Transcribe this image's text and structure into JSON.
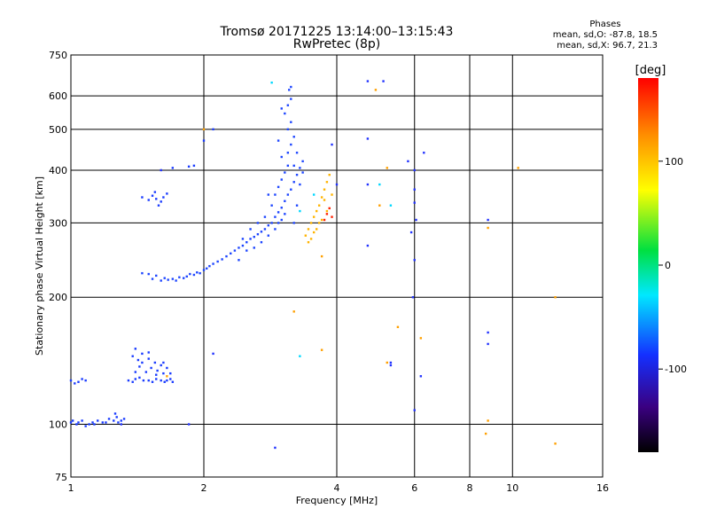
{
  "header": {
    "title_line1": "Tromsø 20171225 13:14:00–13:15:43",
    "title_line2": "RwPretec (8p)",
    "phases_heading": "Phases",
    "phases_o": "mean, sd,O: -87.8, 18.5",
    "phases_x": "mean, sd,X: 96.7, 21.3"
  },
  "chart_data": {
    "type": "scatter",
    "title": "Tromsø 20171225 13:14:00–13:15:43",
    "subtitle": "RwPretec (8p)",
    "xlabel": "Frequency [MHz]",
    "ylabel": "Stationary phase Virtual Height [km]",
    "xscale": "log",
    "yscale": "log",
    "xlim": [
      1,
      16
    ],
    "ylim": [
      75,
      750
    ],
    "xticks": [
      1,
      2,
      4,
      6,
      8,
      10,
      16
    ],
    "xtick_labels": [
      "1",
      "2",
      "4",
      "6",
      "8",
      "10",
      "16"
    ],
    "yticks": [
      75,
      100,
      200,
      300,
      400,
      500,
      600,
      750
    ],
    "ytick_labels": [
      "75",
      "100",
      "200",
      "300",
      "400",
      "500",
      "600",
      "750"
    ],
    "grid": true,
    "colorbar": {
      "label": "[deg]",
      "range": [
        -180,
        180
      ],
      "ticks": [
        100,
        0,
        -100
      ],
      "tick_labels": [
        "100",
        "0",
        "-100"
      ],
      "colors": [
        "#000000",
        "#3a0080",
        "#1430ff",
        "#00e8ff",
        "#00e040",
        "#ffff00",
        "#ff8c00",
        "#ff0000"
      ]
    },
    "clusters": [
      {
        "name": "low E trace",
        "phase": -110,
        "color": "#1a3cff",
        "points": [
          [
            1.0,
            101
          ],
          [
            1.01,
            102
          ],
          [
            1.03,
            100
          ],
          [
            1.04,
            101
          ],
          [
            1.06,
            102
          ],
          [
            1.08,
            99
          ],
          [
            1.1,
            100
          ],
          [
            1.12,
            101
          ],
          [
            1.13,
            100
          ],
          [
            1.15,
            102
          ],
          [
            1.18,
            101
          ],
          [
            1.2,
            101
          ],
          [
            1.22,
            103
          ],
          [
            1.25,
            102
          ],
          [
            1.27,
            104
          ],
          [
            1.28,
            101
          ],
          [
            1.3,
            102
          ],
          [
            1.32,
            103
          ],
          [
            1.26,
            106
          ]
        ]
      },
      {
        "name": "E trace 2",
        "phase": -115,
        "color": "#1a3cff",
        "points": [
          [
            1.0,
            127
          ],
          [
            1.02,
            125
          ],
          [
            1.04,
            126
          ],
          [
            1.06,
            128
          ],
          [
            1.08,
            127
          ],
          [
            1.35,
            127
          ],
          [
            1.38,
            126
          ],
          [
            1.4,
            128
          ],
          [
            1.43,
            129
          ],
          [
            1.46,
            127
          ],
          [
            1.5,
            127
          ],
          [
            1.53,
            126
          ],
          [
            1.56,
            128
          ],
          [
            1.6,
            127
          ],
          [
            1.63,
            126
          ],
          [
            1.65,
            127
          ],
          [
            1.68,
            128
          ],
          [
            1.7,
            126
          ]
        ]
      },
      {
        "name": "E trace 2 upper",
        "phase": -110,
        "color": "#1a3cff",
        "points": [
          [
            1.38,
            145
          ],
          [
            1.4,
            151
          ],
          [
            1.42,
            142
          ],
          [
            1.45,
            140
          ],
          [
            1.48,
            133
          ],
          [
            1.5,
            148
          ],
          [
            1.52,
            136
          ],
          [
            1.55,
            140
          ],
          [
            1.57,
            134
          ],
          [
            1.6,
            138
          ],
          [
            1.62,
            132
          ],
          [
            1.65,
            136
          ],
          [
            1.68,
            132
          ],
          [
            1.4,
            133
          ],
          [
            1.43,
            137
          ],
          [
            1.56,
            131
          ],
          [
            1.62,
            140
          ],
          [
            1.45,
            147
          ],
          [
            1.5,
            143
          ]
        ]
      },
      {
        "name": "F region trace",
        "phase": -105,
        "color": "#1e46ff",
        "points": [
          [
            1.45,
            228
          ],
          [
            1.5,
            227
          ],
          [
            1.53,
            221
          ],
          [
            1.56,
            225
          ],
          [
            1.6,
            219
          ],
          [
            1.63,
            222
          ],
          [
            1.66,
            220
          ],
          [
            1.7,
            221
          ],
          [
            1.73,
            219
          ],
          [
            1.76,
            223
          ],
          [
            1.8,
            222
          ],
          [
            1.83,
            224
          ],
          [
            1.86,
            227
          ],
          [
            1.9,
            226
          ],
          [
            1.93,
            229
          ],
          [
            1.96,
            228
          ],
          [
            2.0,
            232
          ],
          [
            2.03,
            234
          ],
          [
            2.06,
            237
          ],
          [
            2.1,
            240
          ],
          [
            2.15,
            243
          ],
          [
            2.2,
            246
          ],
          [
            2.25,
            250
          ],
          [
            2.3,
            254
          ],
          [
            2.35,
            258
          ],
          [
            2.4,
            262
          ],
          [
            2.45,
            265
          ],
          [
            2.5,
            270
          ],
          [
            2.55,
            275
          ],
          [
            2.6,
            278
          ],
          [
            2.65,
            282
          ],
          [
            2.7,
            286
          ],
          [
            2.75,
            290
          ],
          [
            2.8,
            296
          ],
          [
            2.85,
            300
          ],
          [
            2.9,
            310
          ],
          [
            2.95,
            318
          ],
          [
            3.0,
            326
          ],
          [
            3.05,
            338
          ],
          [
            3.1,
            350
          ],
          [
            3.15,
            360
          ],
          [
            3.2,
            375
          ],
          [
            3.25,
            390
          ],
          [
            3.3,
            405
          ],
          [
            3.35,
            420
          ]
        ]
      },
      {
        "name": "F region spread",
        "phase": -100,
        "color": "#1e46ff",
        "points": [
          [
            2.4,
            245
          ],
          [
            2.5,
            258
          ],
          [
            2.6,
            262
          ],
          [
            2.7,
            270
          ],
          [
            2.8,
            280
          ],
          [
            2.9,
            290
          ],
          [
            2.95,
            300
          ],
          [
            3.0,
            305
          ],
          [
            3.05,
            315
          ],
          [
            2.75,
            310
          ],
          [
            2.85,
            330
          ],
          [
            2.9,
            350
          ],
          [
            2.95,
            365
          ],
          [
            3.0,
            380
          ],
          [
            3.05,
            395
          ],
          [
            3.1,
            410
          ],
          [
            3.1,
            440
          ],
          [
            3.15,
            460
          ],
          [
            3.2,
            480
          ],
          [
            3.1,
            500
          ],
          [
            3.15,
            520
          ],
          [
            3.05,
            545
          ],
          [
            3.1,
            570
          ],
          [
            3.15,
            590
          ],
          [
            3.12,
            620
          ],
          [
            3.15,
            630
          ],
          [
            2.95,
            470
          ],
          [
            3.0,
            430
          ],
          [
            2.8,
            350
          ],
          [
            2.65,
            300
          ],
          [
            2.55,
            290
          ],
          [
            2.45,
            275
          ],
          [
            3.2,
            300
          ],
          [
            3.25,
            330
          ],
          [
            3.3,
            370
          ],
          [
            3.35,
            395
          ],
          [
            3.0,
            560
          ],
          [
            3.25,
            440
          ],
          [
            3.2,
            410
          ]
        ]
      },
      {
        "name": "F layer x-mode",
        "phase": 100,
        "color": "#ffb400",
        "points": [
          [
            3.4,
            280
          ],
          [
            3.45,
            290
          ],
          [
            3.5,
            300
          ],
          [
            3.55,
            310
          ],
          [
            3.6,
            320
          ],
          [
            3.65,
            330
          ],
          [
            3.7,
            345
          ],
          [
            3.75,
            360
          ],
          [
            3.8,
            375
          ],
          [
            3.85,
            390
          ],
          [
            3.5,
            275
          ],
          [
            3.6,
            290
          ],
          [
            3.7,
            305
          ],
          [
            3.8,
            320
          ],
          [
            3.65,
            300
          ],
          [
            3.75,
            340
          ],
          [
            3.55,
            285
          ],
          [
            3.9,
            350
          ],
          [
            3.45,
            270
          ]
        ]
      },
      {
        "name": "Es patch",
        "phase": -110,
        "color": "#1a3cff",
        "points": [
          [
            1.45,
            345
          ],
          [
            1.5,
            340
          ],
          [
            1.53,
            348
          ],
          [
            1.56,
            342
          ],
          [
            1.6,
            337
          ],
          [
            1.58,
            330
          ],
          [
            1.62,
            345
          ],
          [
            1.55,
            355
          ],
          [
            1.65,
            352
          ],
          [
            1.7,
            405
          ],
          [
            1.85,
            408
          ],
          [
            1.9,
            410
          ],
          [
            2.0,
            470
          ],
          [
            2.1,
            500
          ]
        ]
      },
      {
        "name": "x-mode red",
        "phase": 170,
        "color": "#ff2000",
        "points": [
          [
            3.8,
            315
          ],
          [
            3.85,
            325
          ],
          [
            3.9,
            310
          ],
          [
            3.75,
            305
          ]
        ]
      },
      {
        "name": "sporadic",
        "phase": -100,
        "color": "#2233ff",
        "points": [
          [
            4.7,
            650
          ],
          [
            4.7,
            475
          ],
          [
            5.8,
            420
          ],
          [
            6.0,
            400
          ],
          [
            6.0,
            360
          ],
          [
            6.0,
            335
          ],
          [
            6.05,
            305
          ],
          [
            5.9,
            285
          ],
          [
            6.0,
            245
          ],
          [
            5.95,
            200
          ],
          [
            6.0,
            108
          ],
          [
            4.7,
            265
          ],
          [
            5.3,
            138
          ],
          [
            5.3,
            140
          ],
          [
            4.7,
            370
          ],
          [
            5.1,
            650
          ],
          [
            6.3,
            440
          ],
          [
            8.8,
            305
          ],
          [
            8.8,
            165
          ],
          [
            8.8,
            155
          ],
          [
            6.2,
            130
          ],
          [
            4.0,
            370
          ],
          [
            3.9,
            460
          ],
          [
            2.9,
            88
          ],
          [
            2.1,
            147
          ],
          [
            1.85,
            100
          ],
          [
            1.3,
            100
          ],
          [
            1.6,
            400
          ]
        ]
      },
      {
        "name": "sporadic warm",
        "phase": 120,
        "color": "#ffa000",
        "points": [
          [
            4.9,
            620
          ],
          [
            5.2,
            140
          ],
          [
            5.5,
            170
          ],
          [
            6.2,
            160
          ],
          [
            8.7,
            95
          ],
          [
            8.8,
            102
          ],
          [
            12.5,
            90
          ],
          [
            12.5,
            200
          ],
          [
            10.3,
            405
          ],
          [
            8.8,
            292
          ],
          [
            5.0,
            330
          ],
          [
            5.2,
            405
          ],
          [
            3.7,
            150
          ],
          [
            3.2,
            185
          ],
          [
            2.0,
            500
          ],
          [
            1.65,
            130
          ],
          [
            3.7,
            250
          ]
        ]
      },
      {
        "name": "sporadic cyan",
        "phase": -40,
        "color": "#00d8ff",
        "points": [
          [
            5.0,
            370
          ],
          [
            5.3,
            330
          ],
          [
            3.3,
            145
          ],
          [
            2.85,
            645
          ],
          [
            3.3,
            320
          ],
          [
            3.55,
            350
          ]
        ]
      }
    ]
  }
}
